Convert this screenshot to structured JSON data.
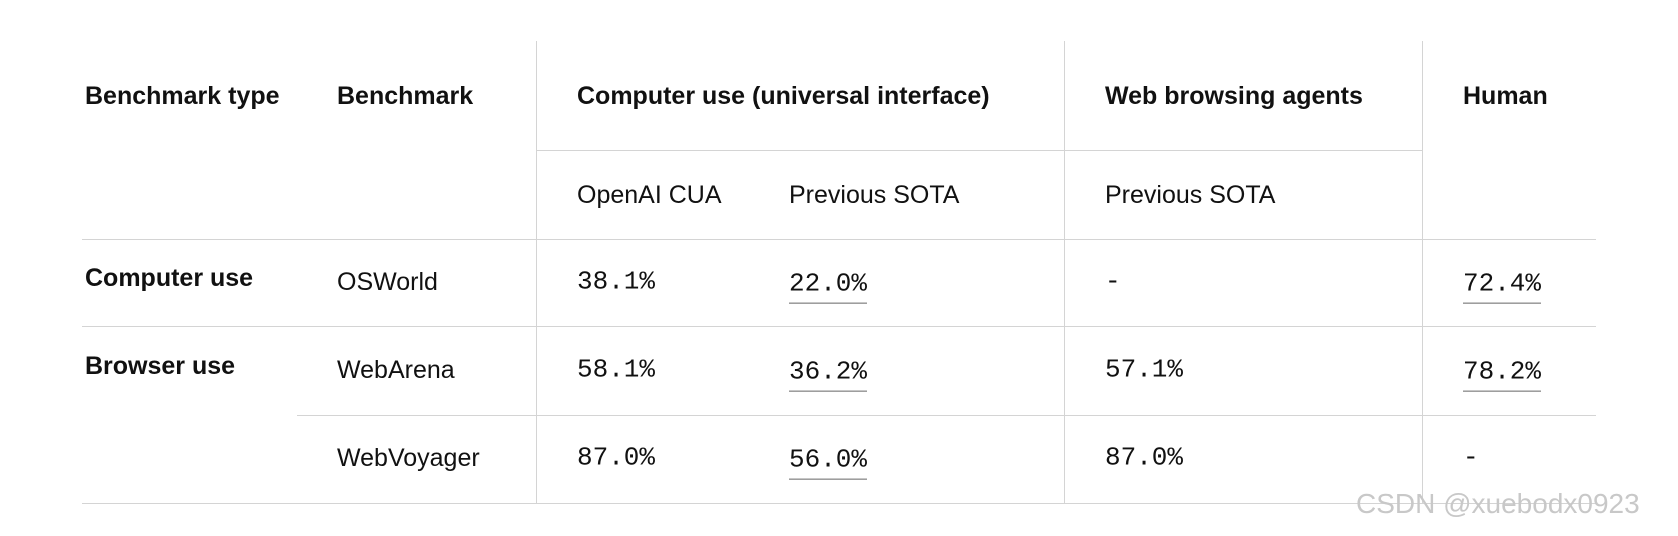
{
  "table": {
    "headers": {
      "benchmark_type": "Benchmark type",
      "benchmark": "Benchmark",
      "groups": [
        "Computer use (universal interface)",
        "Web browsing agents",
        "Human"
      ],
      "subheaders": [
        "OpenAI CUA",
        "Previous SOTA",
        "Previous SOTA"
      ]
    },
    "groups": [
      {
        "type": "Computer use",
        "rows": [
          [
            "OSWorld",
            "38.1%",
            "22.0%",
            "-",
            "72.4%"
          ]
        ]
      },
      {
        "type": "Browser use",
        "rows": [
          [
            "WebArena",
            "58.1%",
            "36.2%",
            "57.1%",
            "78.2%"
          ],
          [
            "WebVoyager",
            "87.0%",
            "56.0%",
            "87.0%",
            "-"
          ]
        ]
      }
    ]
  },
  "watermark": "CSDN @xuebodx0923"
}
